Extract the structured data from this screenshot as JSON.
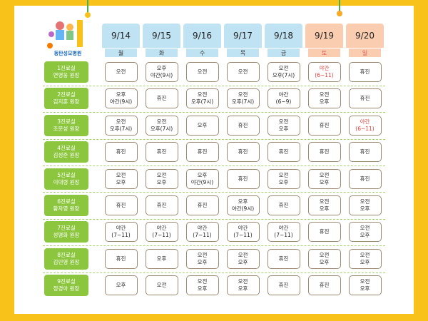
{
  "logo": {
    "text": "동탄성모병원"
  },
  "columns": [
    {
      "date": "9/14",
      "day": "월",
      "color": "#bfe3f2",
      "text_color": "#333333"
    },
    {
      "date": "9/15",
      "day": "화",
      "color": "#bfe3f2",
      "text_color": "#333333"
    },
    {
      "date": "9/16",
      "day": "수",
      "color": "#bfe3f2",
      "text_color": "#333333"
    },
    {
      "date": "9/17",
      "day": "목",
      "color": "#bfe3f2",
      "text_color": "#333333"
    },
    {
      "date": "9/18",
      "day": "금",
      "color": "#bfe3f2",
      "text_color": "#333333"
    },
    {
      "date": "9/19",
      "day": "토",
      "color": "#fbcdb0",
      "text_color": "#d9534f"
    },
    {
      "date": "9/20",
      "day": "일",
      "color": "#fbcdb0",
      "text_color": "#d9534f"
    }
  ],
  "rows": [
    {
      "room": "1진료실",
      "doctor": "연영웅 원장",
      "cells": [
        {
          "lines": [
            "오전"
          ]
        },
        {
          "lines": [
            "오후",
            "야간(9시)"
          ]
        },
        {
          "lines": [
            "오전"
          ]
        },
        {
          "lines": [
            "오전"
          ]
        },
        {
          "lines": [
            "오전",
            "오후(7시)"
          ]
        },
        {
          "lines": [
            "야간",
            "(6~11)"
          ],
          "color": "#e53935"
        },
        {
          "lines": [
            "휴진"
          ]
        }
      ]
    },
    {
      "room": "2진료실",
      "doctor": "김지훈 원장",
      "cells": [
        {
          "lines": [
            "오후",
            "야간(9시)"
          ]
        },
        {
          "lines": [
            "휴진"
          ]
        },
        {
          "lines": [
            "오전",
            "오후(7시)"
          ]
        },
        {
          "lines": [
            "오전",
            "오후(7시)"
          ]
        },
        {
          "lines": [
            "야간",
            "(6~9)"
          ]
        },
        {
          "lines": [
            "오전",
            "오후"
          ]
        },
        {
          "lines": [
            "휴진"
          ]
        }
      ]
    },
    {
      "room": "3진료실",
      "doctor": "조문성 원장",
      "cells": [
        {
          "lines": [
            "오전",
            "오후(7시)"
          ]
        },
        {
          "lines": [
            "오전",
            "오후(7시)"
          ]
        },
        {
          "lines": [
            "오후"
          ]
        },
        {
          "lines": [
            "휴진"
          ]
        },
        {
          "lines": [
            "오전",
            "오후"
          ]
        },
        {
          "lines": [
            "휴진"
          ]
        },
        {
          "lines": [
            "야간",
            "(6~11)"
          ],
          "color": "#e53935"
        }
      ]
    },
    {
      "room": "4진료실",
      "doctor": "김성준 원장",
      "cells": [
        {
          "lines": [
            "휴진"
          ]
        },
        {
          "lines": [
            "휴진"
          ]
        },
        {
          "lines": [
            "휴진"
          ]
        },
        {
          "lines": [
            "휴진"
          ]
        },
        {
          "lines": [
            "휴진"
          ]
        },
        {
          "lines": [
            "휴진"
          ]
        },
        {
          "lines": [
            "휴진"
          ]
        }
      ]
    },
    {
      "room": "5진료실",
      "doctor": "이대령 원장",
      "cells": [
        {
          "lines": [
            "오전",
            "오후"
          ]
        },
        {
          "lines": [
            "오전",
            "오후"
          ]
        },
        {
          "lines": [
            "오후",
            "야간(9시)"
          ]
        },
        {
          "lines": [
            "휴진"
          ]
        },
        {
          "lines": [
            "오전",
            "오후"
          ]
        },
        {
          "lines": [
            "오전",
            "오후"
          ]
        },
        {
          "lines": [
            "휴진"
          ]
        }
      ]
    },
    {
      "room": "6진료실",
      "doctor": "황자영 원장",
      "cells": [
        {
          "lines": [
            "휴진"
          ]
        },
        {
          "lines": [
            "휴진"
          ]
        },
        {
          "lines": [
            "휴진"
          ]
        },
        {
          "lines": [
            "오후",
            "야간(9시)"
          ]
        },
        {
          "lines": [
            "휴진"
          ]
        },
        {
          "lines": [
            "오전",
            "오후"
          ]
        },
        {
          "lines": [
            "오전",
            "오후"
          ]
        }
      ]
    },
    {
      "room": "7진료실",
      "doctor": "성명화 원장",
      "cells": [
        {
          "lines": [
            "야간",
            "(7~11)"
          ]
        },
        {
          "lines": [
            "야간",
            "(7~11)"
          ]
        },
        {
          "lines": [
            "야간",
            "(7~11)"
          ]
        },
        {
          "lines": [
            "야간",
            "(7~11)"
          ]
        },
        {
          "lines": [
            "야간",
            "(7~11)"
          ]
        },
        {
          "lines": [
            "휴진"
          ]
        },
        {
          "lines": [
            "오전",
            "오후"
          ]
        }
      ]
    },
    {
      "room": "8진료실",
      "doctor": "김민영 원장",
      "cells": [
        {
          "lines": [
            "휴진"
          ]
        },
        {
          "lines": [
            "오후"
          ]
        },
        {
          "lines": [
            "오전",
            "오후"
          ]
        },
        {
          "lines": [
            "오전",
            "오후"
          ]
        },
        {
          "lines": [
            "휴진"
          ]
        },
        {
          "lines": [
            "오전",
            "오후"
          ]
        },
        {
          "lines": [
            "오전",
            "오후"
          ]
        }
      ]
    },
    {
      "room": "9진료실",
      "doctor": "정경아 원장",
      "cells": [
        {
          "lines": [
            "오후"
          ]
        },
        {
          "lines": [
            "오전"
          ]
        },
        {
          "lines": [
            "오전",
            "오후"
          ]
        },
        {
          "lines": [
            "오전",
            "오후"
          ]
        },
        {
          "lines": [
            "휴진"
          ]
        },
        {
          "lines": [
            "휴진"
          ]
        },
        {
          "lines": [
            "오전",
            "오후"
          ]
        }
      ]
    }
  ]
}
